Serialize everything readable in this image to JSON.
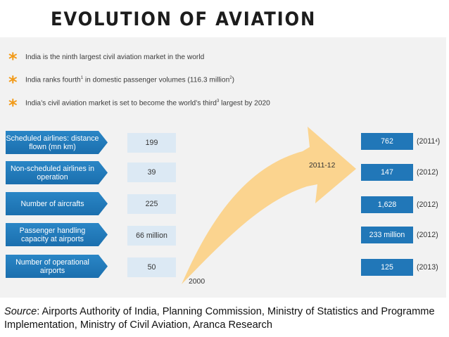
{
  "title": "EVOLUTION OF AVIATION",
  "bullets": [
    {
      "pre": "India is the ninth largest civil aviation market in the world",
      "sup": "",
      "post": "",
      "sup2": "",
      "post2": ""
    },
    {
      "pre": "India ranks fourth",
      "sup": "1",
      "post": " in domestic passenger volumes (116.3 million",
      "sup2": "2",
      "post2": ")"
    },
    {
      "pre": "India’s civil aviation market is set to become the world’s third",
      "sup": "3",
      "post": " largest by 2020",
      "sup2": "",
      "post2": ""
    }
  ],
  "metrics": [
    {
      "label": "Scheduled airlines: distance flown (mn km)",
      "value_2000": "199",
      "value_2011": "762",
      "year": "(2011",
      "year_sup": "4",
      "year_end": ")"
    },
    {
      "label": "Non-scheduled airlines in operation",
      "value_2000": "39",
      "value_2011": "147",
      "year": "(2012)",
      "year_sup": "",
      "year_end": ""
    },
    {
      "label": "Number of aircrafts",
      "value_2000": "225",
      "value_2011": "1,628",
      "year": "(2012)",
      "year_sup": "",
      "year_end": ""
    },
    {
      "label": "Passenger handling capacity at airports",
      "value_2000": "66 million",
      "value_2011": "233 million",
      "year": "(2012)",
      "year_sup": "",
      "year_end": ""
    },
    {
      "label": "Number of operational airports",
      "value_2000": "50",
      "value_2011": "125",
      "year": "(2013)",
      "year_sup": "",
      "year_end": ""
    }
  ],
  "arrow": {
    "start_label": "2000",
    "end_label": "2011-12",
    "color": "#fbd48f"
  },
  "source": {
    "prefix": "Source",
    "text": ": Airports Authority of India, Planning Commission, Ministry of Statistics and Programme Implementation, Ministry of Civil Aviation, Aranca Research"
  },
  "colors": {
    "accent": "#f29a17",
    "label_blue": "#1b6fae",
    "value_bg": "#dce9f4",
    "result_blue": "#2177b8"
  }
}
